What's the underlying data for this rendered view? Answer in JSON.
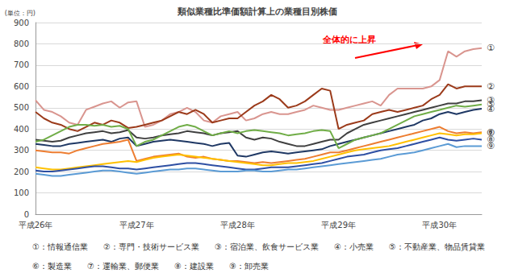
{
  "chart_data": {
    "type": "line",
    "title": "類似業種比準価額計算上の業種目別株価",
    "y_label": "(単位：円)",
    "annotation": "全体的に上昇",
    "categories": [
      "平成26年",
      null,
      null,
      null,
      null,
      null,
      null,
      null,
      null,
      null,
      null,
      null,
      "平成27年",
      null,
      null,
      null,
      null,
      null,
      null,
      null,
      null,
      null,
      null,
      null,
      "平成28年",
      null,
      null,
      null,
      null,
      null,
      null,
      null,
      null,
      null,
      null,
      null,
      "平成29年",
      null,
      null,
      null,
      null,
      null,
      null,
      null,
      null,
      null,
      null,
      null,
      "平成30年",
      null,
      null,
      null,
      null,
      null
    ],
    "series": [
      {
        "name": "①：情報通信業",
        "label": "①",
        "color": "#d9958f",
        "values": [
          535,
          490,
          480,
          460,
          430,
          420,
          490,
          505,
          520,
          530,
          500,
          525,
          530,
          410,
          420,
          440,
          470,
          480,
          500,
          480,
          440,
          430,
          460,
          470,
          480,
          440,
          450,
          470,
          480,
          470,
          470,
          480,
          490,
          510,
          500,
          490,
          490,
          500,
          510,
          520,
          530,
          510,
          560,
          590,
          590,
          590,
          590,
          600,
          630,
          765,
          740,
          765,
          775,
          780
        ]
      },
      {
        "name": "②：専門・技術サービス業",
        "label": "②",
        "color": "#9b3a1a",
        "values": [
          480,
          450,
          430,
          420,
          400,
          390,
          410,
          430,
          420,
          440,
          430,
          405,
          410,
          420,
          430,
          440,
          460,
          480,
          470,
          490,
          470,
          430,
          440,
          450,
          450,
          480,
          510,
          530,
          560,
          540,
          500,
          510,
          530,
          560,
          590,
          580,
          400,
          420,
          430,
          440,
          470,
          480,
          490,
          480,
          490,
          500,
          510,
          540,
          560,
          610,
          590,
          600,
          600,
          600
        ]
      },
      {
        "name": "③：宿泊業、飲食サービス業",
        "label": "③",
        "color": "#404040",
        "values": [
          350,
          345,
          340,
          345,
          360,
          370,
          380,
          385,
          390,
          380,
          385,
          395,
          360,
          355,
          360,
          370,
          375,
          380,
          390,
          385,
          380,
          370,
          380,
          385,
          390,
          360,
          350,
          360,
          355,
          340,
          330,
          320,
          320,
          330,
          340,
          350,
          350,
          380,
          400,
          420,
          430,
          440,
          450,
          460,
          470,
          480,
          490,
          500,
          510,
          520,
          520,
          530,
          530,
          535
        ]
      },
      {
        "name": "④：小売業",
        "label": "④",
        "color": "#1f3864",
        "values": [
          330,
          325,
          320,
          320,
          330,
          335,
          340,
          345,
          350,
          340,
          355,
          360,
          320,
          330,
          340,
          345,
          350,
          345,
          340,
          335,
          330,
          320,
          330,
          335,
          275,
          270,
          280,
          290,
          295,
          290,
          285,
          290,
          295,
          300,
          305,
          320,
          330,
          340,
          350,
          360,
          370,
          380,
          390,
          400,
          410,
          420,
          440,
          450,
          470,
          480,
          470,
          480,
          490,
          495
        ]
      },
      {
        "name": "⑤：不動産業、物品賃貸業",
        "label": "⑤",
        "color": "#70ad47",
        "values": [
          340,
          350,
          370,
          390,
          410,
          420,
          420,
          415,
          420,
          410,
          415,
          400,
          320,
          340,
          350,
          370,
          390,
          410,
          420,
          410,
          390,
          370,
          380,
          390,
          380,
          390,
          395,
          390,
          385,
          380,
          370,
          375,
          380,
          390,
          395,
          390,
          310,
          330,
          350,
          360,
          370,
          380,
          400,
          420,
          440,
          460,
          470,
          480,
          490,
          500,
          510,
          505,
          510,
          515
        ]
      },
      {
        "name": "⑥：製造業",
        "label": "⑥",
        "color": "#ed7d31",
        "values": [
          300,
          295,
          290,
          290,
          285,
          300,
          310,
          320,
          330,
          335,
          340,
          350,
          250,
          260,
          270,
          275,
          280,
          285,
          270,
          265,
          270,
          260,
          255,
          250,
          250,
          245,
          240,
          245,
          240,
          245,
          250,
          255,
          260,
          270,
          280,
          290,
          290,
          300,
          310,
          320,
          330,
          340,
          350,
          360,
          370,
          380,
          390,
          400,
          410,
          390,
          380,
          385,
          380,
          385
        ]
      },
      {
        "name": "⑦：運輸業、郵便業",
        "label": "⑦",
        "color": "#ffc000",
        "values": [
          220,
          215,
          210,
          210,
          215,
          220,
          225,
          230,
          235,
          240,
          245,
          250,
          245,
          255,
          265,
          270,
          275,
          280,
          275,
          270,
          265,
          260,
          255,
          250,
          245,
          240,
          235,
          230,
          230,
          235,
          240,
          240,
          245,
          250,
          260,
          270,
          280,
          290,
          300,
          305,
          310,
          315,
          320,
          330,
          340,
          350,
          360,
          370,
          380,
          375,
          370,
          375,
          375,
          380
        ]
      },
      {
        "name": "⑧：建設業",
        "label": "⑧",
        "color": "#2e4fa3",
        "values": [
          205,
          200,
          200,
          205,
          210,
          215,
          220,
          225,
          225,
          220,
          215,
          215,
          210,
          215,
          220,
          225,
          230,
          235,
          240,
          240,
          235,
          230,
          225,
          220,
          215,
          210,
          210,
          215,
          220,
          220,
          220,
          225,
          230,
          235,
          240,
          250,
          260,
          270,
          275,
          280,
          290,
          300,
          305,
          310,
          320,
          330,
          340,
          350,
          360,
          350,
          345,
          350,
          355,
          350
        ]
      },
      {
        "name": "⑨：卸売業",
        "label": "⑨",
        "color": "#5b9bd5",
        "values": [
          190,
          185,
          180,
          180,
          185,
          190,
          195,
          200,
          205,
          205,
          200,
          195,
          190,
          195,
          200,
          205,
          210,
          210,
          215,
          215,
          210,
          205,
          200,
          200,
          200,
          205,
          205,
          200,
          200,
          205,
          210,
          210,
          215,
          220,
          225,
          230,
          235,
          240,
          245,
          250,
          255,
          260,
          270,
          280,
          285,
          290,
          300,
          310,
          320,
          330,
          315,
          320,
          320,
          320
        ]
      }
    ],
    "ylim": [
      0,
      900
    ],
    "yticks": [
      0,
      100,
      200,
      300,
      400,
      500,
      600,
      700,
      800,
      900
    ],
    "grid": true,
    "legend": "bottom"
  }
}
